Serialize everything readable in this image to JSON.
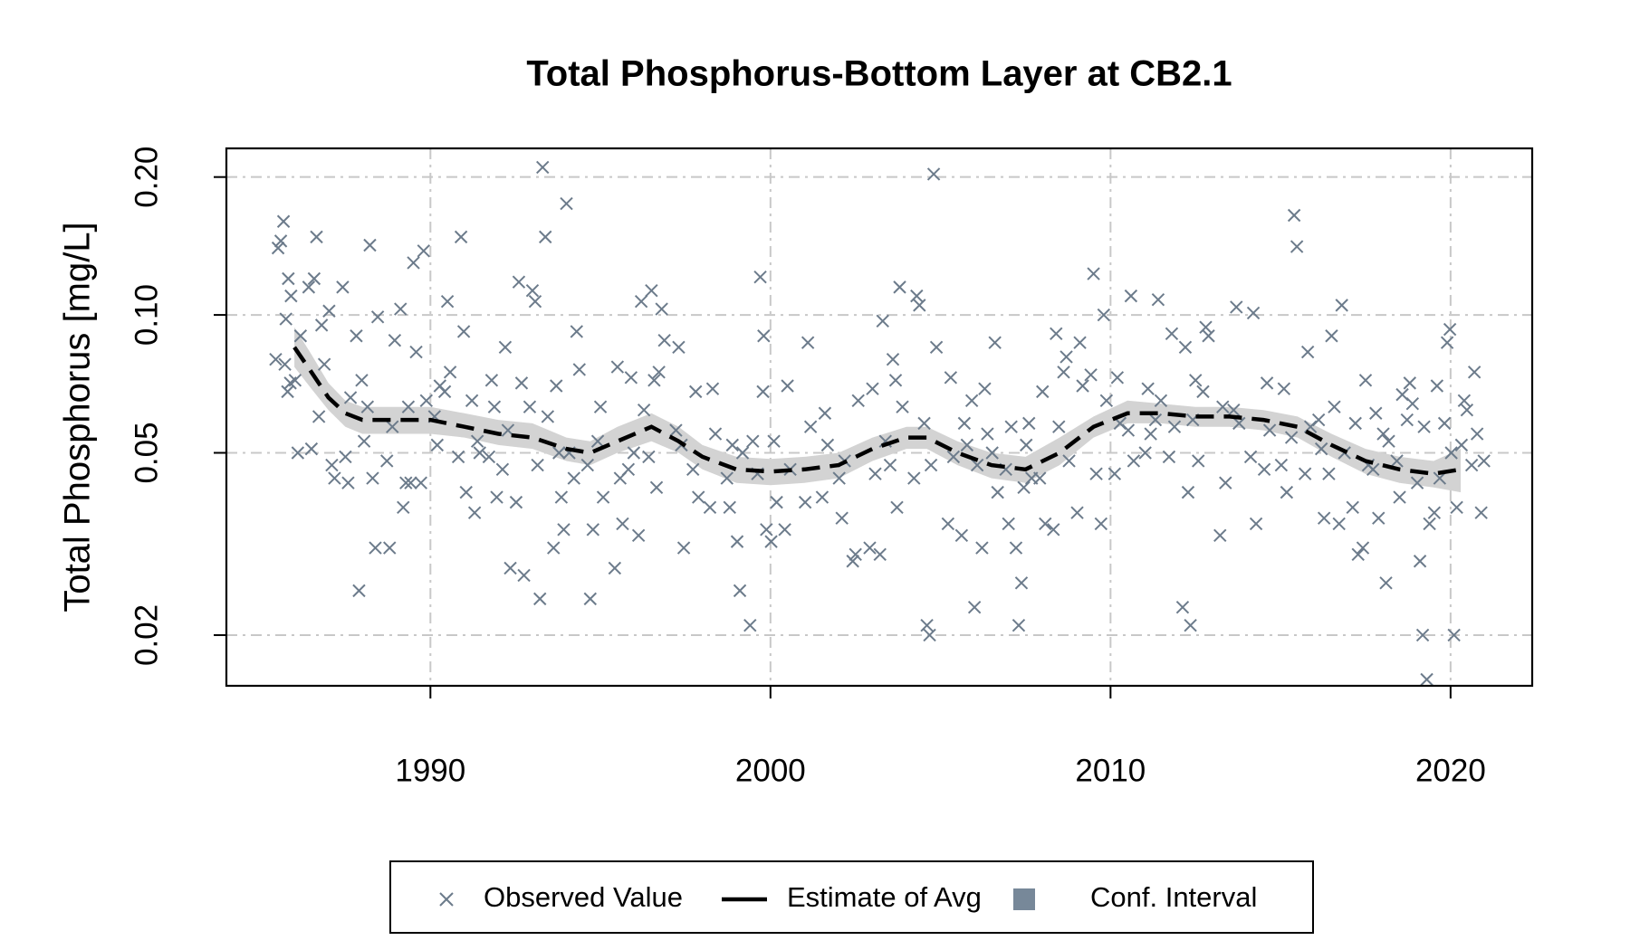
{
  "chart_data": {
    "type": "scatter",
    "title": "Total Phosphorus-Bottom Layer at CB2.1",
    "ylabel": "Total Phosphorus [mg/L]",
    "log_y": true,
    "grid": true,
    "xlim": [
      1984,
      2022.4
    ],
    "xticks": [
      1990,
      2000,
      2010,
      2020
    ],
    "ylim": [
      0.0155,
      0.231
    ],
    "yticks": [
      {
        "value": 0.2,
        "label": "0.20"
      },
      {
        "value": 0.1,
        "label": "0.10"
      },
      0.05,
      0.02
    ],
    "legend": "bottom",
    "series": [
      {
        "name": "Observed Value",
        "type": "scatter",
        "color": "#6c7b8b",
        "x": [
          1985.6,
          1985.68,
          1985.52,
          1985.75,
          1985.45,
          1985.82,
          1985.9,
          1985.8,
          1985.88,
          1985.72,
          1986.1,
          1986.18,
          1986.02,
          1986.5,
          1986.58,
          1986.42,
          1986.65,
          1986.8,
          1986.88,
          1986.72,
          1987.1,
          1987.18,
          1987.02,
          1987.5,
          1987.58,
          1987.42,
          1987.65,
          1987.9,
          1987.98,
          1987.82,
          1988.05,
          1988.3,
          1988.38,
          1988.22,
          1988.45,
          1988.15,
          1988.8,
          1988.88,
          1988.72,
          1988.95,
          1989.2,
          1989.28,
          1989.12,
          1989.35,
          1989.5,
          1989.58,
          1989.42,
          1989.8,
          1989.88,
          1989.72,
          1990.2,
          1990.28,
          1990.12,
          1990.5,
          1990.58,
          1990.42,
          1990.9,
          1990.98,
          1990.82,
          1991.05,
          1991.3,
          1991.38,
          1991.22,
          1991.45,
          1991.8,
          1991.88,
          1991.72,
          1991.95,
          1992.2,
          1992.28,
          1992.12,
          1992.35,
          1992.6,
          1992.68,
          1992.52,
          1992.75,
          1993.0,
          1993.08,
          1992.92,
          1993.15,
          1993.3,
          1993.38,
          1993.22,
          1993.45,
          1993.7,
          1993.78,
          1993.62,
          1993.85,
          1994.0,
          1994.08,
          1993.92,
          1994.3,
          1994.38,
          1994.22,
          1994.7,
          1994.78,
          1994.62,
          1995.0,
          1995.08,
          1994.92,
          1995.5,
          1995.58,
          1995.42,
          1995.65,
          1995.9,
          1995.98,
          1995.82,
          1996.2,
          1996.28,
          1996.12,
          1996.5,
          1996.58,
          1996.42,
          1996.65,
          1996.8,
          1996.88,
          1996.72,
          1997.3,
          1997.38,
          1997.22,
          1997.45,
          1997.8,
          1997.88,
          1997.72,
          1998.3,
          1998.38,
          1998.22,
          1998.8,
          1998.88,
          1998.72,
          1999.1,
          1999.18,
          1999.02,
          1999.4,
          1999.48,
          1999.7,
          1999.78,
          1999.62,
          1999.8,
          1999.88,
          2000.1,
          2000.18,
          2000.02,
          2000.5,
          2000.58,
          2000.42,
          2001.1,
          2001.18,
          2001.02,
          2001.6,
          2001.68,
          2001.52,
          2002.1,
          2002.18,
          2002.02,
          2002.5,
          2002.58,
          2002.42,
          2003.0,
          2003.08,
          2002.92,
          2003.3,
          2003.38,
          2003.22,
          2003.6,
          2003.68,
          2003.52,
          2003.8,
          2003.88,
          2003.72,
          2004.3,
          2004.38,
          2004.22,
          2004.6,
          2004.68,
          2004.52,
          2004.8,
          2004.88,
          2004.72,
          2005.3,
          2005.38,
          2005.22,
          2005.7,
          2005.78,
          2005.62,
          2006.0,
          2006.08,
          2005.92,
          2006.3,
          2006.38,
          2006.22,
          2006.6,
          2006.68,
          2006.52,
          2007.0,
          2007.08,
          2006.92,
          2007.3,
          2007.38,
          2007.22,
          2007.45,
          2007.6,
          2007.68,
          2007.52,
          2008.0,
          2008.08,
          2007.92,
          2008.4,
          2008.48,
          2008.32,
          2008.7,
          2008.78,
          2008.62,
          2009.1,
          2009.18,
          2009.02,
          2009.5,
          2009.58,
          2009.42,
          2009.8,
          2009.88,
          2009.72,
          2010.2,
          2010.28,
          2010.12,
          2010.6,
          2010.68,
          2010.52,
          2011.1,
          2011.18,
          2011.02,
          2011.4,
          2011.48,
          2011.32,
          2011.8,
          2011.88,
          2011.72,
          2012.2,
          2012.28,
          2012.12,
          2012.35,
          2012.5,
          2012.58,
          2012.42,
          2012.8,
          2012.88,
          2012.72,
          2013.3,
          2013.38,
          2013.22,
          2013.7,
          2013.78,
          2013.62,
          2014.2,
          2014.28,
          2014.12,
          2014.6,
          2014.68,
          2014.52,
          2015.1,
          2015.18,
          2015.02,
          2015.4,
          2015.48,
          2015.32,
          2015.8,
          2015.88,
          2015.72,
          2016.2,
          2016.28,
          2016.12,
          2016.5,
          2016.58,
          2016.42,
          2016.8,
          2016.88,
          2016.72,
          2017.2,
          2017.28,
          2017.12,
          2017.5,
          2017.58,
          2017.42,
          2017.8,
          2017.88,
          2017.72,
          2018.1,
          2018.18,
          2018.02,
          2018.5,
          2018.58,
          2018.42,
          2018.8,
          2018.88,
          2018.72,
          2019.1,
          2019.18,
          2019.02,
          2019.3,
          2019.38,
          2019.22,
          2019.6,
          2019.68,
          2019.52,
          2019.9,
          2019.98,
          2019.82,
          2020.1,
          2020.18,
          2020.02,
          2020.4,
          2020.48,
          2020.32,
          2020.7,
          2020.78,
          2020.62,
          2020.9,
          2020.98
        ],
        "values": [
          0.145,
          0.16,
          0.14,
          0.098,
          0.08,
          0.12,
          0.11,
          0.068,
          0.071,
          0.078,
          0.05,
          0.09,
          0.072,
          0.051,
          0.12,
          0.115,
          0.148,
          0.095,
          0.078,
          0.06,
          0.047,
          0.044,
          0.102,
          0.049,
          0.043,
          0.115,
          0.066,
          0.025,
          0.072,
          0.09,
          0.053,
          0.044,
          0.031,
          0.142,
          0.099,
          0.063,
          0.031,
          0.057,
          0.048,
          0.088,
          0.038,
          0.043,
          0.103,
          0.063,
          0.13,
          0.083,
          0.043,
          0.138,
          0.065,
          0.043,
          0.052,
          0.07,
          0.06,
          0.107,
          0.075,
          0.068,
          0.148,
          0.092,
          0.049,
          0.041,
          0.037,
          0.053,
          0.065,
          0.05,
          0.072,
          0.063,
          0.049,
          0.04,
          0.085,
          0.056,
          0.046,
          0.028,
          0.118,
          0.071,
          0.039,
          0.027,
          0.113,
          0.107,
          0.063,
          0.047,
          0.21,
          0.148,
          0.024,
          0.06,
          0.07,
          0.05,
          0.031,
          0.04,
          0.175,
          0.05,
          0.034,
          0.092,
          0.076,
          0.044,
          0.024,
          0.034,
          0.047,
          0.063,
          0.04,
          0.053,
          0.077,
          0.044,
          0.028,
          0.035,
          0.073,
          0.05,
          0.046,
          0.107,
          0.062,
          0.033,
          0.113,
          0.072,
          0.049,
          0.042,
          0.103,
          0.088,
          0.075,
          0.085,
          0.052,
          0.056,
          0.031,
          0.068,
          0.04,
          0.046,
          0.069,
          0.055,
          0.038,
          0.038,
          0.052,
          0.044,
          0.025,
          0.05,
          0.032,
          0.021,
          0.053,
          0.121,
          0.068,
          0.045,
          0.09,
          0.034,
          0.053,
          0.039,
          0.032,
          0.07,
          0.046,
          0.034,
          0.087,
          0.057,
          0.039,
          0.061,
          0.052,
          0.04,
          0.036,
          0.048,
          0.044,
          0.03,
          0.065,
          0.029,
          0.069,
          0.045,
          0.031,
          0.097,
          0.053,
          0.03,
          0.08,
          0.072,
          0.047,
          0.115,
          0.063,
          0.038,
          0.11,
          0.105,
          0.044,
          0.021,
          0.02,
          0.058,
          0.203,
          0.085,
          0.047,
          0.073,
          0.049,
          0.035,
          0.058,
          0.052,
          0.033,
          0.023,
          0.047,
          0.065,
          0.069,
          0.055,
          0.031,
          0.087,
          0.041,
          0.05,
          0.035,
          0.057,
          0.046,
          0.021,
          0.026,
          0.031,
          0.042,
          0.058,
          0.044,
          0.052,
          0.068,
          0.035,
          0.044,
          0.091,
          0.057,
          0.034,
          0.081,
          0.048,
          0.075,
          0.087,
          0.07,
          0.037,
          0.123,
          0.045,
          0.074,
          0.1,
          0.065,
          0.035,
          0.073,
          0.058,
          0.045,
          0.11,
          0.048,
          0.056,
          0.069,
          0.055,
          0.05,
          0.108,
          0.065,
          0.059,
          0.091,
          0.057,
          0.049,
          0.085,
          0.041,
          0.023,
          0.021,
          0.072,
          0.048,
          0.059,
          0.094,
          0.09,
          0.068,
          0.063,
          0.043,
          0.033,
          0.104,
          0.058,
          0.062,
          0.101,
          0.035,
          0.049,
          0.071,
          0.056,
          0.046,
          0.069,
          0.041,
          0.047,
          0.165,
          0.141,
          0.054,
          0.083,
          0.057,
          0.045,
          0.051,
          0.036,
          0.059,
          0.09,
          0.063,
          0.045,
          0.105,
          0.05,
          0.035,
          0.058,
          0.03,
          0.038,
          0.072,
          0.047,
          0.031,
          0.061,
          0.036,
          0.046,
          0.026,
          0.053,
          0.055,
          0.04,
          0.067,
          0.048,
          0.071,
          0.064,
          0.059,
          0.029,
          0.02,
          0.043,
          0.016,
          0.035,
          0.057,
          0.07,
          0.044,
          0.037,
          0.087,
          0.093,
          0.058,
          0.02,
          0.038,
          0.05,
          0.065,
          0.062,
          0.052,
          0.075,
          0.055,
          0.047,
          0.037,
          0.048
        ]
      },
      {
        "name": "Estimate of Avg",
        "type": "line",
        "color": "#000000",
        "x": [
          1986,
          1986.5,
          1987,
          1987.5,
          1988,
          1989,
          1990,
          1991,
          1992,
          1993,
          1994,
          1994.7,
          1995.5,
          1996.5,
          1997.3,
          1998,
          1999,
          2000,
          2001,
          2002,
          2003,
          2004,
          2004.6,
          2005.5,
          2006.5,
          2007.5,
          2008.5,
          2009.5,
          2010.5,
          2011.5,
          2012.5,
          2013.5,
          2014.5,
          2015.5,
          2016.5,
          2017.5,
          2018.5,
          2019.5,
          2020.3
        ],
        "values": [
          0.085,
          0.075,
          0.066,
          0.061,
          0.059,
          0.059,
          0.059,
          0.057,
          0.055,
          0.054,
          0.051,
          0.05,
          0.053,
          0.057,
          0.053,
          0.049,
          0.046,
          0.0455,
          0.046,
          0.047,
          0.051,
          0.054,
          0.054,
          0.05,
          0.047,
          0.046,
          0.05,
          0.057,
          0.061,
          0.061,
          0.06,
          0.06,
          0.059,
          0.057,
          0.052,
          0.048,
          0.046,
          0.045,
          0.046
        ]
      },
      {
        "name": "Conf. Interval",
        "type": "band",
        "color": "#778899",
        "band_color": "#d3d3d3",
        "x": [
          1986,
          1986.5,
          1987,
          1987.5,
          1988,
          1989,
          1990,
          1991,
          1992,
          1993,
          1994,
          1994.7,
          1995.5,
          1996.5,
          1997.3,
          1998,
          1999,
          2000,
          2001,
          2002,
          2003,
          2004,
          2004.6,
          2005.5,
          2006.5,
          2007.5,
          2008.5,
          2009.5,
          2010.5,
          2011.5,
          2012.5,
          2013.5,
          2014.5,
          2015.5,
          2016.5,
          2017.5,
          2018.5,
          2019.5,
          2020.3
        ],
        "lower": [
          0.077,
          0.069,
          0.062,
          0.057,
          0.055,
          0.055,
          0.055,
          0.054,
          0.052,
          0.051,
          0.048,
          0.047,
          0.05,
          0.053,
          0.05,
          0.046,
          0.043,
          0.0425,
          0.043,
          0.044,
          0.048,
          0.051,
          0.051,
          0.047,
          0.044,
          0.043,
          0.047,
          0.054,
          0.058,
          0.058,
          0.057,
          0.057,
          0.056,
          0.054,
          0.049,
          0.045,
          0.043,
          0.042,
          0.041
        ],
        "upper": [
          0.094,
          0.082,
          0.071,
          0.065,
          0.063,
          0.063,
          0.063,
          0.061,
          0.059,
          0.058,
          0.054,
          0.053,
          0.057,
          0.061,
          0.057,
          0.052,
          0.049,
          0.0485,
          0.049,
          0.05,
          0.054,
          0.057,
          0.057,
          0.053,
          0.05,
          0.049,
          0.054,
          0.06,
          0.065,
          0.064,
          0.063,
          0.063,
          0.062,
          0.06,
          0.055,
          0.051,
          0.049,
          0.048,
          0.051
        ]
      }
    ]
  }
}
